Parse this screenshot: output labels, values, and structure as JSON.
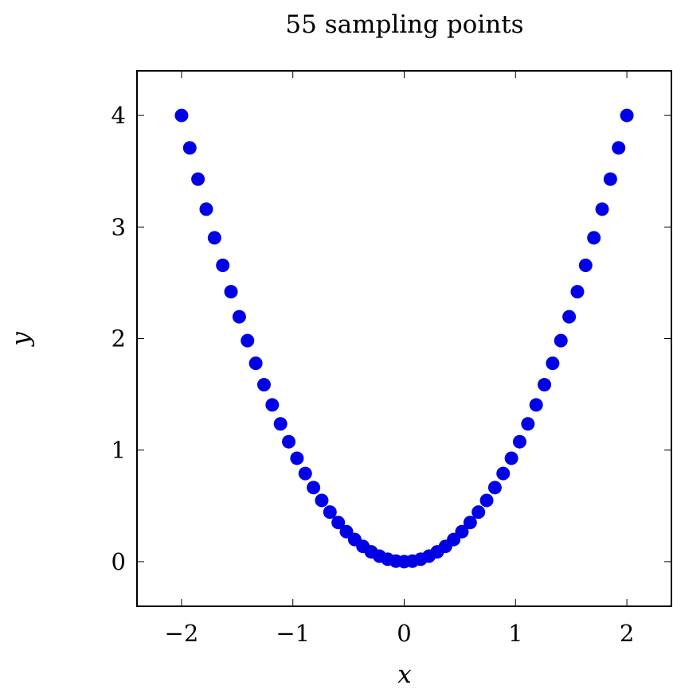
{
  "chart_data": {
    "type": "scatter",
    "title": "55 sampling points",
    "xlabel": "x",
    "ylabel": "y",
    "xlim": [
      -2.4,
      2.4
    ],
    "ylim": [
      -0.4,
      4.4
    ],
    "xticks": [
      -2,
      -1,
      0,
      1,
      2
    ],
    "xtick_labels": [
      "−2",
      "−1",
      "0",
      "1",
      "2"
    ],
    "yticks": [
      0,
      1,
      2,
      3,
      4
    ],
    "ytick_labels": [
      "0",
      "1",
      "2",
      "3",
      "4"
    ],
    "grid": false,
    "marker_color": "#0000e6",
    "series": [
      {
        "x": [
          -2.0,
          -1.9259,
          -1.8519,
          -1.7778,
          -1.7037,
          -1.6296,
          -1.5556,
          -1.4815,
          -1.4074,
          -1.3333,
          -1.2593,
          -1.1852,
          -1.1111,
          -1.037,
          -0.963,
          -0.8889,
          -0.8148,
          -0.7407,
          -0.6667,
          -0.5926,
          -0.5185,
          -0.4444,
          -0.3704,
          -0.2963,
          -0.2222,
          -0.1481,
          -0.0741,
          0.0,
          0.0741,
          0.1481,
          0.2222,
          0.2963,
          0.3704,
          0.4444,
          0.5185,
          0.5926,
          0.6667,
          0.7407,
          0.8148,
          0.8889,
          0.963,
          1.037,
          1.1111,
          1.1852,
          1.2593,
          1.3333,
          1.4074,
          1.4815,
          1.5556,
          1.6296,
          1.7037,
          1.7778,
          1.8519,
          1.9259,
          2.0
        ],
        "y": [
          4.0,
          3.709,
          3.429,
          3.16,
          2.903,
          2.656,
          2.42,
          2.195,
          1.981,
          1.778,
          1.586,
          1.405,
          1.235,
          1.075,
          0.927,
          0.79,
          0.664,
          0.549,
          0.444,
          0.351,
          0.269,
          0.198,
          0.137,
          0.088,
          0.049,
          0.022,
          0.005,
          0.0,
          0.005,
          0.022,
          0.049,
          0.088,
          0.137,
          0.198,
          0.269,
          0.351,
          0.444,
          0.549,
          0.664,
          0.79,
          0.927,
          1.075,
          1.235,
          1.405,
          1.586,
          1.778,
          1.981,
          2.195,
          2.42,
          2.656,
          2.903,
          3.16,
          3.429,
          3.709,
          4.0
        ]
      }
    ]
  }
}
